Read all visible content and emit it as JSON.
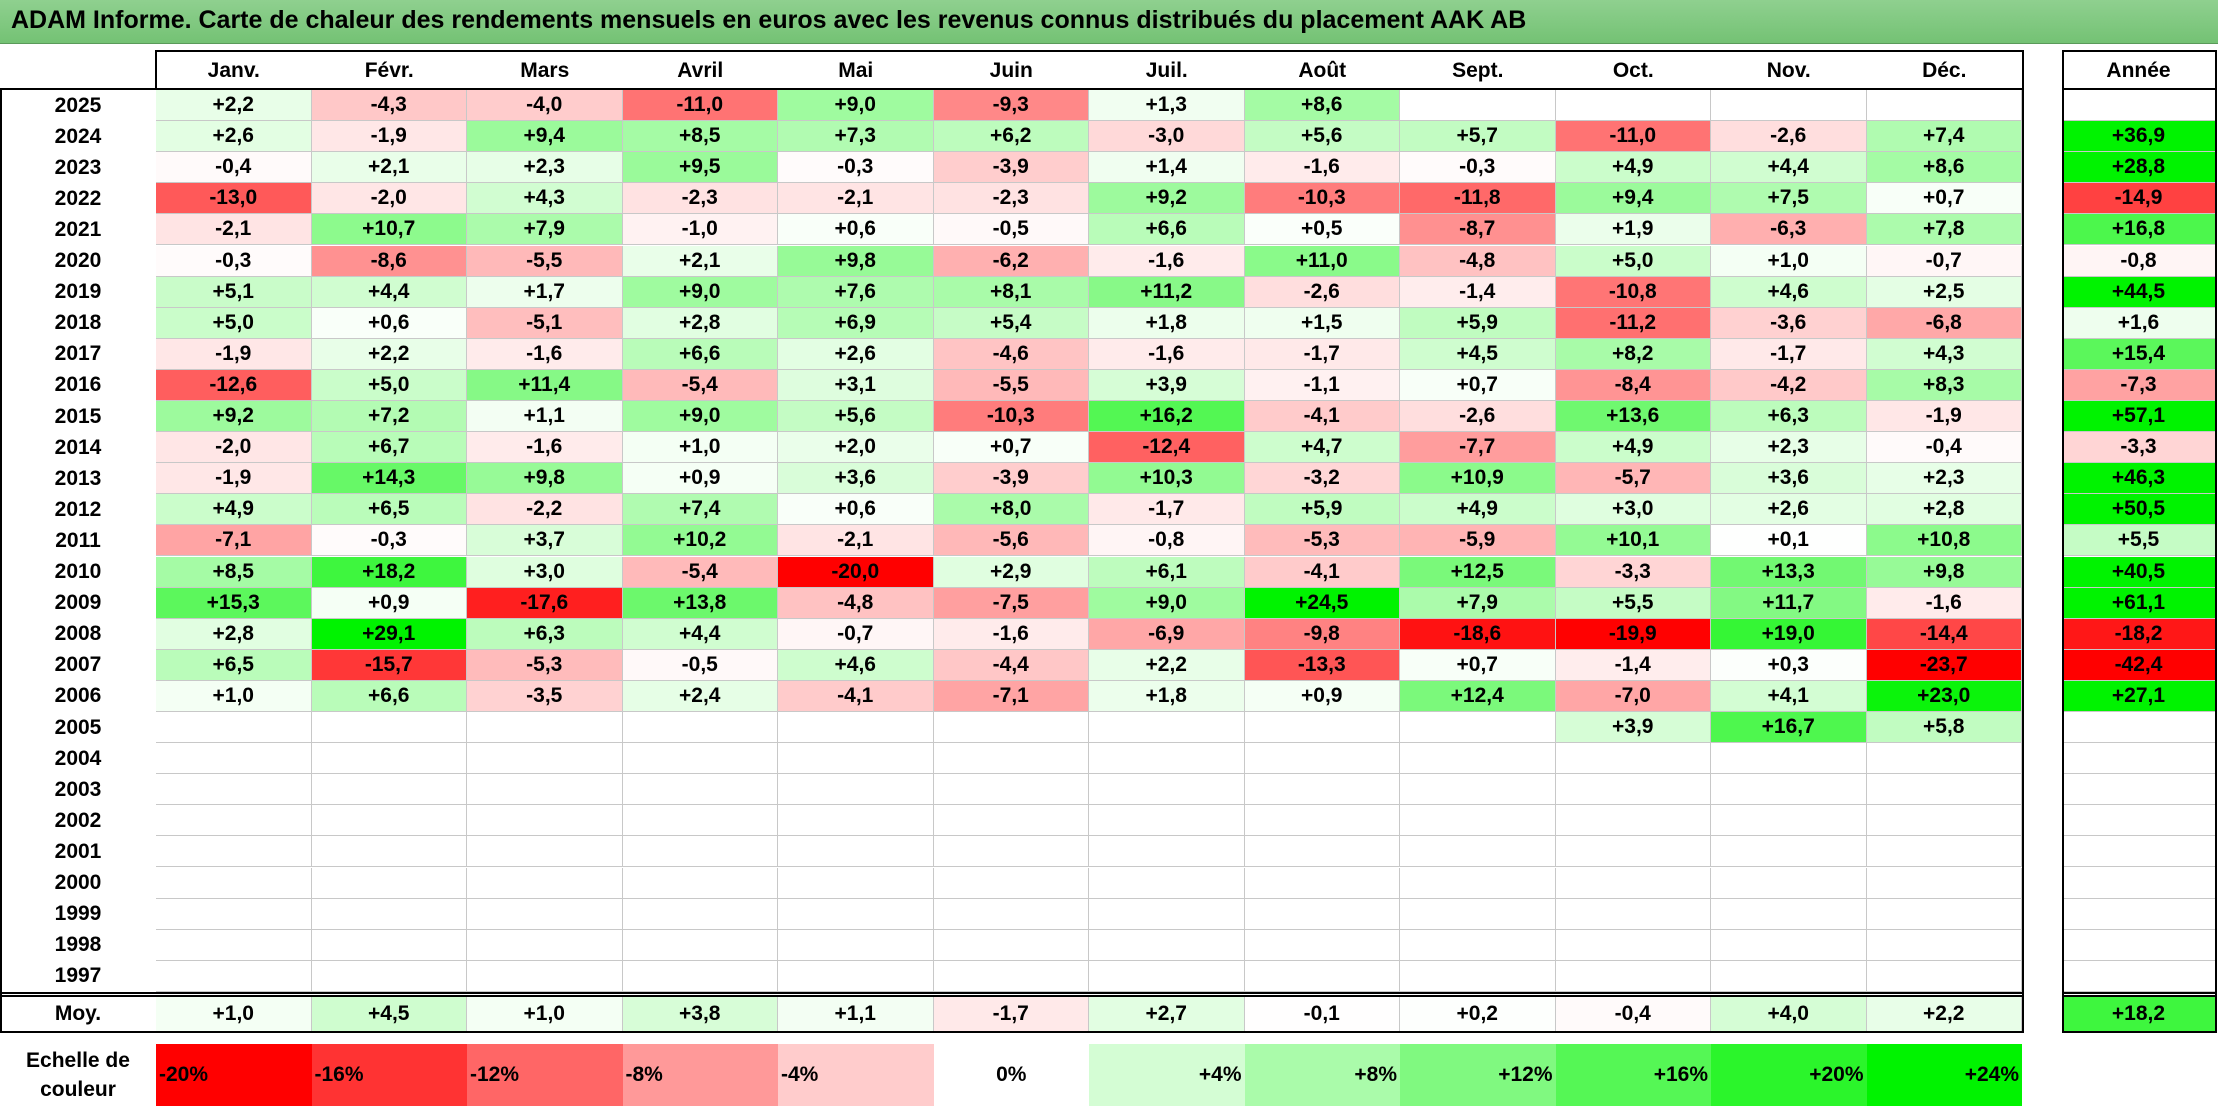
{
  "title": "ADAM Informe. Carte de chaleur des rendements mensuels en euros avec les revenus connus distribués du placement AAK AB",
  "chart_data": {
    "type": "heatmap",
    "months": [
      "Janv.",
      "Févr.",
      "Mars",
      "Avril",
      "Mai",
      "Juin",
      "Juil.",
      "Août",
      "Sept.",
      "Oct.",
      "Nov.",
      "Déc."
    ],
    "annual_label": "Année",
    "rows": [
      {
        "year": "2025",
        "values": [
          "+2,2",
          "-4,3",
          "-4,0",
          "-11,0",
          "+9,0",
          "-9,3",
          "+1,3",
          "+8,6",
          "",
          "",
          "",
          ""
        ],
        "annual": ""
      },
      {
        "year": "2024",
        "values": [
          "+2,6",
          "-1,9",
          "+9,4",
          "+8,5",
          "+7,3",
          "+6,2",
          "-3,0",
          "+5,6",
          "+5,7",
          "-11,0",
          "-2,6",
          "+7,4"
        ],
        "annual": "+36,9"
      },
      {
        "year": "2023",
        "values": [
          "-0,4",
          "+2,1",
          "+2,3",
          "+9,5",
          "-0,3",
          "-3,9",
          "+1,4",
          "-1,6",
          "-0,3",
          "+4,9",
          "+4,4",
          "+8,6"
        ],
        "annual": "+28,8"
      },
      {
        "year": "2022",
        "values": [
          "-13,0",
          "-2,0",
          "+4,3",
          "-2,3",
          "-2,1",
          "-2,3",
          "+9,2",
          "-10,3",
          "-11,8",
          "+9,4",
          "+7,5",
          "+0,7"
        ],
        "annual": "-14,9"
      },
      {
        "year": "2021",
        "values": [
          "-2,1",
          "+10,7",
          "+7,9",
          "-1,0",
          "+0,6",
          "-0,5",
          "+6,6",
          "+0,5",
          "-8,7",
          "+1,9",
          "-6,3",
          "+7,8"
        ],
        "annual": "+16,8"
      },
      {
        "year": "2020",
        "values": [
          "-0,3",
          "-8,6",
          "-5,5",
          "+2,1",
          "+9,8",
          "-6,2",
          "-1,6",
          "+11,0",
          "-4,8",
          "+5,0",
          "+1,0",
          "-0,7"
        ],
        "annual": "-0,8"
      },
      {
        "year": "2019",
        "values": [
          "+5,1",
          "+4,4",
          "+1,7",
          "+9,0",
          "+7,6",
          "+8,1",
          "+11,2",
          "-2,6",
          "-1,4",
          "-10,8",
          "+4,6",
          "+2,5"
        ],
        "annual": "+44,5"
      },
      {
        "year": "2018",
        "values": [
          "+5,0",
          "+0,6",
          "-5,1",
          "+2,8",
          "+6,9",
          "+5,4",
          "+1,8",
          "+1,5",
          "+5,9",
          "-11,2",
          "-3,6",
          "-6,8"
        ],
        "annual": "+1,6"
      },
      {
        "year": "2017",
        "values": [
          "-1,9",
          "+2,2",
          "-1,6",
          "+6,6",
          "+2,6",
          "-4,6",
          "-1,6",
          "-1,7",
          "+4,5",
          "+8,2",
          "-1,7",
          "+4,3"
        ],
        "annual": "+15,4"
      },
      {
        "year": "2016",
        "values": [
          "-12,6",
          "+5,0",
          "+11,4",
          "-5,4",
          "+3,1",
          "-5,5",
          "+3,9",
          "-1,1",
          "+0,7",
          "-8,4",
          "-4,2",
          "+8,3"
        ],
        "annual": "-7,3"
      },
      {
        "year": "2015",
        "values": [
          "+9,2",
          "+7,2",
          "+1,1",
          "+9,0",
          "+5,6",
          "-10,3",
          "+16,2",
          "-4,1",
          "-2,6",
          "+13,6",
          "+6,3",
          "-1,9"
        ],
        "annual": "+57,1"
      },
      {
        "year": "2014",
        "values": [
          "-2,0",
          "+6,7",
          "-1,6",
          "+1,0",
          "+2,0",
          "+0,7",
          "-12,4",
          "+4,7",
          "-7,7",
          "+4,9",
          "+2,3",
          "-0,4"
        ],
        "annual": "-3,3"
      },
      {
        "year": "2013",
        "values": [
          "-1,9",
          "+14,3",
          "+9,8",
          "+0,9",
          "+3,6",
          "-3,9",
          "+10,3",
          "-3,2",
          "+10,9",
          "-5,7",
          "+3,6",
          "+2,3"
        ],
        "annual": "+46,3"
      },
      {
        "year": "2012",
        "values": [
          "+4,9",
          "+6,5",
          "-2,2",
          "+7,4",
          "+0,6",
          "+8,0",
          "-1,7",
          "+5,9",
          "+4,9",
          "+3,0",
          "+2,6",
          "+2,8"
        ],
        "annual": "+50,5"
      },
      {
        "year": "2011",
        "values": [
          "-7,1",
          "-0,3",
          "+3,7",
          "+10,2",
          "-2,1",
          "-5,6",
          "-0,8",
          "-5,3",
          "-5,9",
          "+10,1",
          "+0,1",
          "+10,8"
        ],
        "annual": "+5,5"
      },
      {
        "year": "2010",
        "values": [
          "+8,5",
          "+18,2",
          "+3,0",
          "-5,4",
          "-20,0",
          "+2,9",
          "+6,1",
          "-4,1",
          "+12,5",
          "-3,3",
          "+13,3",
          "+9,8"
        ],
        "annual": "+40,5"
      },
      {
        "year": "2009",
        "values": [
          "+15,3",
          "+0,9",
          "-17,6",
          "+13,8",
          "-4,8",
          "-7,5",
          "+9,0",
          "+24,5",
          "+7,9",
          "+5,5",
          "+11,7",
          "-1,6"
        ],
        "annual": "+61,1"
      },
      {
        "year": "2008",
        "values": [
          "+2,8",
          "+29,1",
          "+6,3",
          "+4,4",
          "-0,7",
          "-1,6",
          "-6,9",
          "-9,8",
          "-18,6",
          "-19,9",
          "+19,0",
          "-14,4"
        ],
        "annual": "-18,2"
      },
      {
        "year": "2007",
        "values": [
          "+6,5",
          "-15,7",
          "-5,3",
          "-0,5",
          "+4,6",
          "-4,4",
          "+2,2",
          "-13,3",
          "+0,7",
          "-1,4",
          "+0,3",
          "-23,7"
        ],
        "annual": "-42,4"
      },
      {
        "year": "2006",
        "values": [
          "+1,0",
          "+6,6",
          "-3,5",
          "+2,4",
          "-4,1",
          "-7,1",
          "+1,8",
          "+0,9",
          "+12,4",
          "-7,0",
          "+4,1",
          "+23,0"
        ],
        "annual": "+27,1"
      },
      {
        "year": "2005",
        "values": [
          "",
          "",
          "",
          "",
          "",
          "",
          "",
          "",
          "",
          "+3,9",
          "+16,7",
          "+5,8"
        ],
        "annual": ""
      },
      {
        "year": "2004",
        "values": [
          "",
          "",
          "",
          "",
          "",
          "",
          "",
          "",
          "",
          "",
          "",
          ""
        ],
        "annual": ""
      },
      {
        "year": "2003",
        "values": [
          "",
          "",
          "",
          "",
          "",
          "",
          "",
          "",
          "",
          "",
          "",
          ""
        ],
        "annual": ""
      },
      {
        "year": "2002",
        "values": [
          "",
          "",
          "",
          "",
          "",
          "",
          "",
          "",
          "",
          "",
          "",
          ""
        ],
        "annual": ""
      },
      {
        "year": "2001",
        "values": [
          "",
          "",
          "",
          "",
          "",
          "",
          "",
          "",
          "",
          "",
          "",
          ""
        ],
        "annual": ""
      },
      {
        "year": "2000",
        "values": [
          "",
          "",
          "",
          "",
          "",
          "",
          "",
          "",
          "",
          "",
          "",
          ""
        ],
        "annual": ""
      },
      {
        "year": "1999",
        "values": [
          "",
          "",
          "",
          "",
          "",
          "",
          "",
          "",
          "",
          "",
          "",
          ""
        ],
        "annual": ""
      },
      {
        "year": "1998",
        "values": [
          "",
          "",
          "",
          "",
          "",
          "",
          "",
          "",
          "",
          "",
          "",
          ""
        ],
        "annual": ""
      },
      {
        "year": "1997",
        "values": [
          "",
          "",
          "",
          "",
          "",
          "",
          "",
          "",
          "",
          "",
          "",
          ""
        ],
        "annual": ""
      }
    ],
    "average": {
      "label": "Moy.",
      "values": [
        "+1,0",
        "+4,5",
        "+1,0",
        "+3,8",
        "+1,1",
        "-1,7",
        "+2,7",
        "-0,1",
        "+0,2",
        "-0,4",
        "+4,0",
        "+2,2"
      ],
      "annual": "+18,2"
    },
    "color_scale": {
      "label": "Echelle de couleur",
      "stops": [
        {
          "label": "-20%",
          "value": -20,
          "color": "#ff0000"
        },
        {
          "label": "-16%",
          "value": -16,
          "color": "#ff3333"
        },
        {
          "label": "-12%",
          "value": -12,
          "color": "#ff6666"
        },
        {
          "label": "-8%",
          "value": -8,
          "color": "#ff9999"
        },
        {
          "label": "-4%",
          "value": -4,
          "color": "#ffcccc"
        },
        {
          "label": "0%",
          "value": 0,
          "color": "#ffffff"
        },
        {
          "label": "+4%",
          "value": 4,
          "color": "#d4fdd4"
        },
        {
          "label": "+8%",
          "value": 8,
          "color": "#aafbaa"
        },
        {
          "label": "+12%",
          "value": 12,
          "color": "#80f980"
        },
        {
          "label": "+16%",
          "value": 16,
          "color": "#55f755"
        },
        {
          "label": "+20%",
          "value": 20,
          "color": "#2bf52b"
        },
        {
          "label": "+24%",
          "value": 24,
          "color": "#00f300"
        }
      ]
    }
  }
}
